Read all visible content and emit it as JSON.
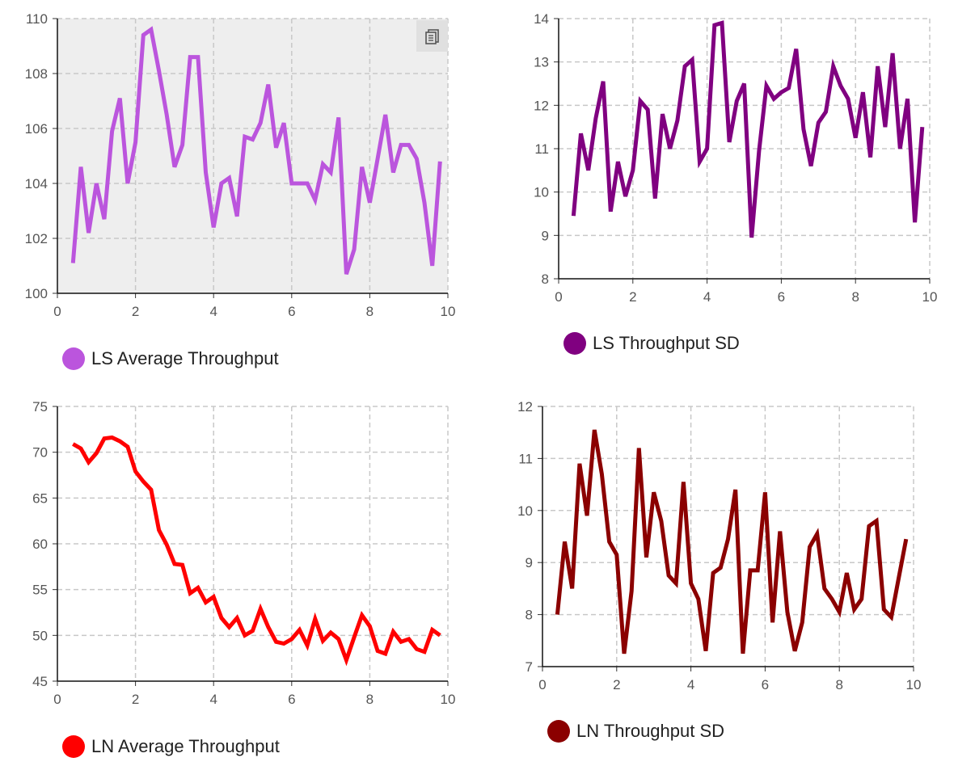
{
  "toolbar": {
    "copy_icon": "copy-icon"
  },
  "chart_data": [
    {
      "type": "line",
      "title": "",
      "xlabel": "",
      "ylabel": "",
      "xlim": [
        0,
        10
      ],
      "ylim": [
        100,
        110
      ],
      "xticks": [
        0,
        2,
        4,
        6,
        8,
        10
      ],
      "yticks": [
        100,
        102,
        104,
        106,
        108,
        110
      ],
      "grid": true,
      "background": "#eeeeee",
      "legend_position": "bottom-left",
      "series": [
        {
          "name": "LS Average Throughput",
          "color": "#bb55dd",
          "x": [
            0.4,
            0.6,
            0.8,
            1.0,
            1.2,
            1.4,
            1.6,
            1.8,
            2.0,
            2.2,
            2.4,
            2.6,
            2.8,
            3.0,
            3.2,
            3.4,
            3.6,
            3.8,
            4.0,
            4.2,
            4.4,
            4.6,
            4.8,
            5.0,
            5.2,
            5.4,
            5.6,
            5.8,
            6.0,
            6.2,
            6.4,
            6.6,
            6.8,
            7.0,
            7.2,
            7.4,
            7.6,
            7.8,
            8.0,
            8.2,
            8.4,
            8.6,
            8.8,
            9.0,
            9.2,
            9.4,
            9.6,
            9.8
          ],
          "y": [
            101.1,
            104.6,
            102.2,
            104.0,
            102.7,
            105.9,
            107.1,
            104.0,
            105.5,
            109.4,
            109.6,
            108.1,
            106.5,
            104.6,
            105.4,
            108.6,
            108.6,
            104.4,
            102.4,
            104.0,
            104.2,
            102.8,
            105.7,
            105.6,
            106.2,
            107.6,
            105.3,
            106.2,
            104.0,
            104.0,
            104.0,
            103.4,
            104.7,
            104.4,
            106.4,
            100.7,
            101.6,
            104.6,
            103.3,
            104.9,
            106.5,
            104.4,
            105.4,
            105.4,
            104.9,
            103.3,
            101.0,
            104.8
          ]
        }
      ]
    },
    {
      "type": "line",
      "title": "",
      "xlabel": "",
      "ylabel": "",
      "xlim": [
        0,
        10
      ],
      "ylim": [
        8,
        14
      ],
      "xticks": [
        0,
        2,
        4,
        6,
        8,
        10
      ],
      "yticks": [
        8,
        9,
        10,
        11,
        12,
        13,
        14
      ],
      "grid": true,
      "background": "#ffffff",
      "legend_position": "bottom-left",
      "series": [
        {
          "name": "LS Throughput SD",
          "color": "#800080",
          "x": [
            0.4,
            0.6,
            0.8,
            1.0,
            1.2,
            1.4,
            1.6,
            1.8,
            2.0,
            2.2,
            2.4,
            2.6,
            2.8,
            3.0,
            3.2,
            3.4,
            3.6,
            3.8,
            4.0,
            4.2,
            4.4,
            4.6,
            4.8,
            5.0,
            5.2,
            5.4,
            5.6,
            5.8,
            6.0,
            6.2,
            6.4,
            6.6,
            6.8,
            7.0,
            7.2,
            7.4,
            7.6,
            7.8,
            8.0,
            8.2,
            8.4,
            8.6,
            8.8,
            9.0,
            9.2,
            9.4,
            9.6,
            9.8
          ],
          "y": [
            9.45,
            11.35,
            10.5,
            11.7,
            12.55,
            9.55,
            10.7,
            9.9,
            10.5,
            12.1,
            11.9,
            9.85,
            11.8,
            11.0,
            11.65,
            12.9,
            13.05,
            10.7,
            11.0,
            13.85,
            13.9,
            11.15,
            12.1,
            12.5,
            8.95,
            10.95,
            12.45,
            12.15,
            12.3,
            12.4,
            13.3,
            11.45,
            10.6,
            11.6,
            11.85,
            12.9,
            12.45,
            12.15,
            11.25,
            12.3,
            10.8,
            12.9,
            11.5,
            13.2,
            11.0,
            12.15,
            9.3,
            11.5
          ]
        }
      ]
    },
    {
      "type": "line",
      "title": "",
      "xlabel": "",
      "ylabel": "",
      "xlim": [
        0,
        10
      ],
      "ylim": [
        45,
        75
      ],
      "xticks": [
        0,
        2,
        4,
        6,
        8,
        10
      ],
      "yticks": [
        45,
        50,
        55,
        60,
        65,
        70,
        75
      ],
      "grid": true,
      "background": "#ffffff",
      "legend_position": "bottom-left",
      "series": [
        {
          "name": "LN Average Throughput",
          "color": "#ff0000",
          "x": [
            0.4,
            0.6,
            0.8,
            1.0,
            1.2,
            1.4,
            1.6,
            1.8,
            2.0,
            2.2,
            2.4,
            2.6,
            2.8,
            3.0,
            3.2,
            3.4,
            3.6,
            3.8,
            4.0,
            4.2,
            4.4,
            4.6,
            4.8,
            5.0,
            5.2,
            5.4,
            5.6,
            5.8,
            6.0,
            6.2,
            6.4,
            6.6,
            6.8,
            7.0,
            7.2,
            7.4,
            7.6,
            7.8,
            8.0,
            8.2,
            8.4,
            8.6,
            8.8,
            9.0,
            9.2,
            9.4,
            9.6,
            9.8
          ],
          "y": [
            70.9,
            70.4,
            68.9,
            69.9,
            71.5,
            71.6,
            71.2,
            70.6,
            67.9,
            66.8,
            65.9,
            61.5,
            59.9,
            57.8,
            57.7,
            54.6,
            55.2,
            53.6,
            54.2,
            51.9,
            50.9,
            51.9,
            50.0,
            50.5,
            52.9,
            50.9,
            49.3,
            49.1,
            49.6,
            50.6,
            48.9,
            51.8,
            49.4,
            50.3,
            49.6,
            47.3,
            49.8,
            52.2,
            51.0,
            48.3,
            48.0,
            50.4,
            49.3,
            49.6,
            48.5,
            48.2,
            50.6,
            50.0
          ]
        }
      ]
    },
    {
      "type": "line",
      "title": "",
      "xlabel": "",
      "ylabel": "",
      "xlim": [
        0,
        10
      ],
      "ylim": [
        7,
        12
      ],
      "xticks": [
        0,
        2,
        4,
        6,
        8,
        10
      ],
      "yticks": [
        7,
        8,
        9,
        10,
        11,
        12
      ],
      "grid": true,
      "background": "#ffffff",
      "legend_position": "bottom-left",
      "series": [
        {
          "name": "LN Throughput SD",
          "color": "#8b0000",
          "x": [
            0.4,
            0.6,
            0.8,
            1.0,
            1.2,
            1.4,
            1.6,
            1.8,
            2.0,
            2.2,
            2.4,
            2.6,
            2.8,
            3.0,
            3.2,
            3.4,
            3.6,
            3.8,
            4.0,
            4.2,
            4.4,
            4.6,
            4.8,
            5.0,
            5.2,
            5.4,
            5.6,
            5.8,
            6.0,
            6.2,
            6.4,
            6.6,
            6.8,
            7.0,
            7.2,
            7.4,
            7.6,
            7.8,
            8.0,
            8.2,
            8.4,
            8.6,
            8.8,
            9.0,
            9.2,
            9.4,
            9.6,
            9.8
          ],
          "y": [
            8.0,
            9.4,
            8.5,
            10.9,
            9.9,
            11.55,
            10.7,
            9.4,
            9.15,
            7.25,
            8.45,
            11.2,
            9.1,
            10.35,
            9.8,
            8.75,
            8.6,
            10.55,
            8.6,
            8.3,
            7.3,
            8.8,
            8.9,
            9.45,
            10.4,
            7.25,
            8.85,
            8.85,
            10.35,
            7.85,
            9.6,
            8.05,
            7.3,
            7.85,
            9.3,
            9.55,
            8.5,
            8.3,
            8.05,
            8.8,
            8.1,
            8.3,
            9.7,
            9.8,
            8.1,
            7.95,
            8.7,
            9.45
          ]
        }
      ]
    }
  ]
}
